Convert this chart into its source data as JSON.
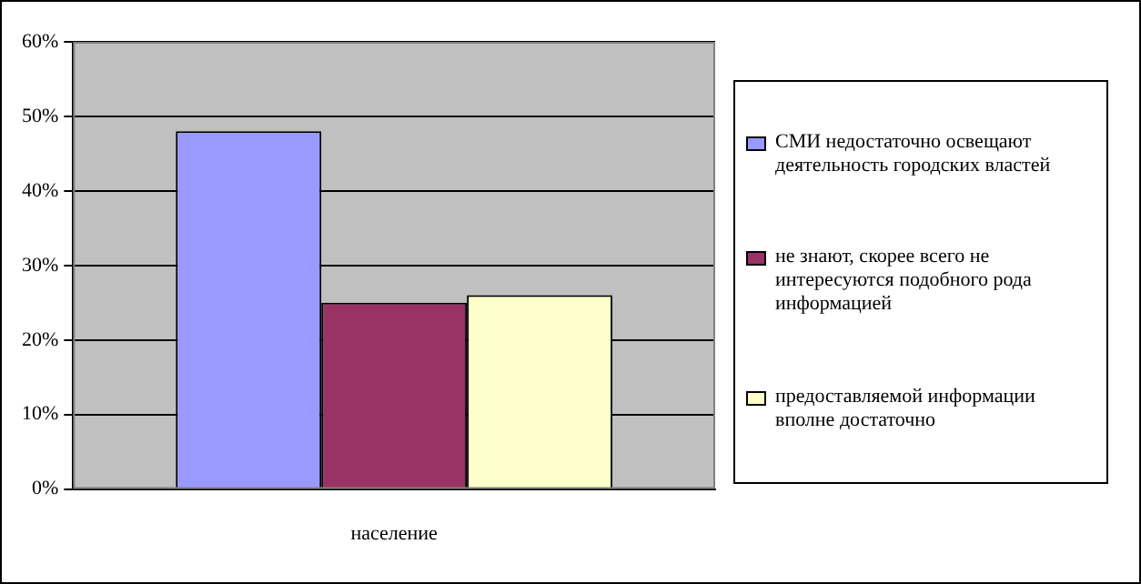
{
  "chart_data": {
    "type": "bar",
    "categories": [
      "население"
    ],
    "series": [
      {
        "name": "СМИ недостаточно освещают деятельность городских властей",
        "color": "#9999ff",
        "values": [
          48
        ]
      },
      {
        "name": "не знают, скорее всего не интересуются подобного рода информацией",
        "color": "#993366",
        "values": [
          25
        ]
      },
      {
        "name": "предоставляемой информации вполне достаточно",
        "color": "#ffffcc",
        "values": [
          26
        ]
      }
    ],
    "ylim": [
      0,
      60
    ],
    "yticks": [
      {
        "value": 0,
        "label": "0%"
      },
      {
        "value": 10,
        "label": "10%"
      },
      {
        "value": 20,
        "label": "20%"
      },
      {
        "value": 30,
        "label": "30%"
      },
      {
        "value": 40,
        "label": "40%"
      },
      {
        "value": 50,
        "label": "50%"
      },
      {
        "value": 60,
        "label": "60%"
      }
    ],
    "grid": "y",
    "legend": "right"
  }
}
